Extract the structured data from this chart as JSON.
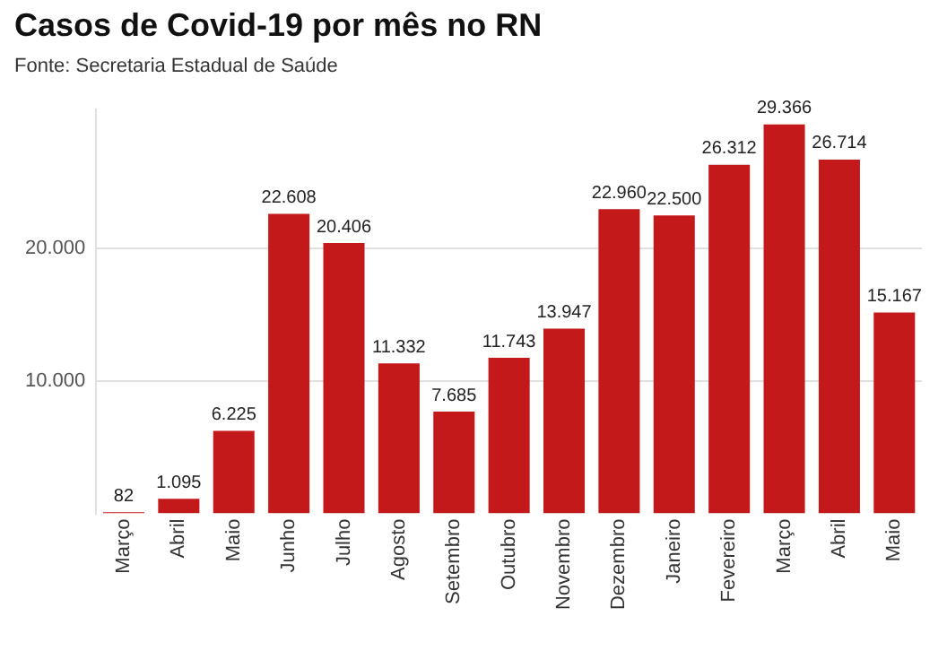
{
  "chart_data": {
    "type": "bar",
    "title": "Casos de Covid-19 por mês no RN",
    "subtitle": "Fonte: Secretaria Estadual de Saúde",
    "categories": [
      "Março",
      "Abril",
      "Maio",
      "Junho",
      "Julho",
      "Agosto",
      "Setembro",
      "Outubro",
      "Novembro",
      "Dezembro",
      "Janeiro",
      "Fevereiro",
      "Março",
      "Abril",
      "Maio"
    ],
    "values": [
      82,
      1095,
      6225,
      22608,
      20406,
      11332,
      7685,
      11743,
      13947,
      22960,
      22500,
      26312,
      29366,
      26714,
      15167
    ],
    "value_labels": [
      "82",
      "1.095",
      "6.225",
      "22.608",
      "20.406",
      "11.332",
      "7.685",
      "11.743",
      "13.947",
      "22.960",
      "22.500",
      "26.312",
      "29.366",
      "26.714",
      "15.167"
    ],
    "color": "#c4191b",
    "ylim": [
      0,
      30500
    ],
    "yticks": [
      {
        "value": 10000,
        "label": "10.000"
      },
      {
        "value": 20000,
        "label": "20.000"
      }
    ],
    "grid": "y"
  }
}
